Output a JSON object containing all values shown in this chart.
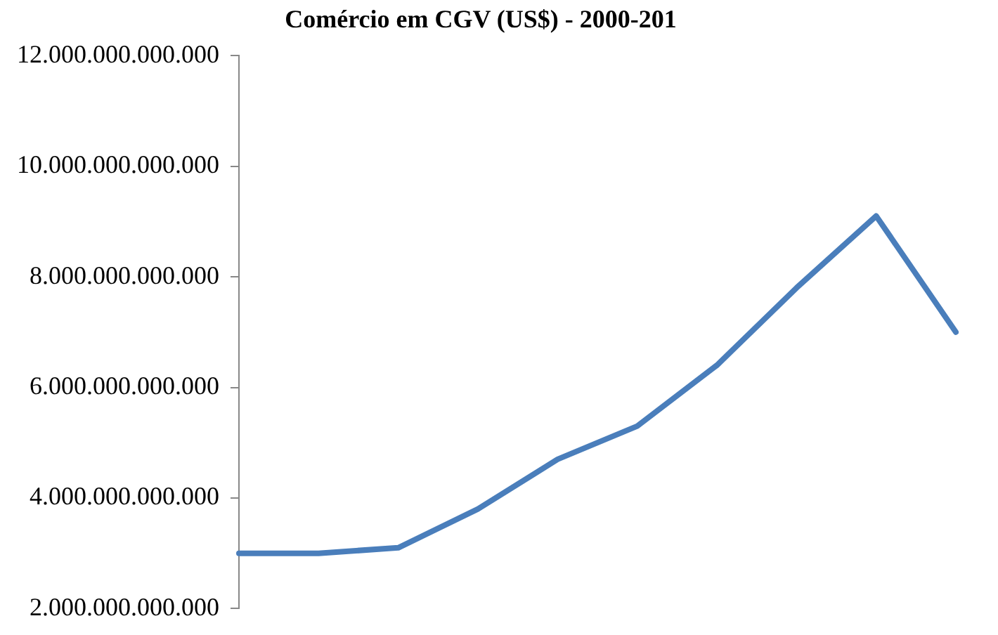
{
  "chart_data": {
    "type": "line",
    "title": "Comércio em CGV (US$) - 2000-201",
    "categories": [
      null,
      null,
      null,
      null,
      null,
      null,
      null,
      null,
      null,
      null
    ],
    "series": [
      {
        "color": "#4a7ebb",
        "values": [
          3000000000000.0,
          3000000000000.0,
          3100000000000.0,
          3800000000000.0,
          4700000000000.0,
          5300000000000.0,
          6400000000000.0,
          7800000000000.0,
          9100000000000.0,
          7000000000000.0
        ]
      }
    ],
    "ylim": [
      2000000000000.0,
      12000000000000.0
    ],
    "yticks": [
      {
        "value": 2000000000000.0,
        "label": "2.000.000.000.000"
      },
      {
        "value": 4000000000000.0,
        "label": "4.000.000.000.000"
      },
      {
        "value": 6000000000000.0,
        "label": "6.000.000.000.000"
      },
      {
        "value": 8000000000000.0,
        "label": "8.000.000.000.000"
      },
      {
        "value": 10000000000000.0,
        "label": "10.000.000.000.000"
      },
      {
        "value": 12000000000000.0,
        "label": "12.000.000.000.000"
      }
    ],
    "grid": false,
    "legend": false,
    "marker": "none",
    "line_style": "solid",
    "tick_labels": "y"
  }
}
